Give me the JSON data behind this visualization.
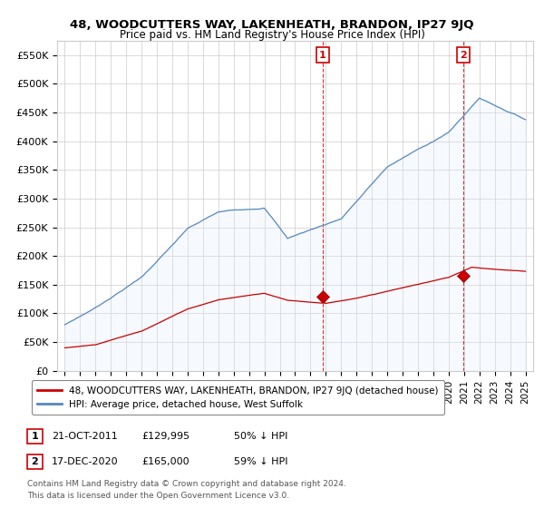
{
  "title": "48, WOODCUTTERS WAY, LAKENHEATH, BRANDON, IP27 9JQ",
  "subtitle": "Price paid vs. HM Land Registry's House Price Index (HPI)",
  "legend_red": "48, WOODCUTTERS WAY, LAKENHEATH, BRANDON, IP27 9JQ (detached house)",
  "legend_blue": "HPI: Average price, detached house, West Suffolk",
  "annotation1_label": "1",
  "annotation1_date": "21-OCT-2011",
  "annotation1_price": "£129,995",
  "annotation1_pct": "50% ↓ HPI",
  "annotation2_label": "2",
  "annotation2_date": "17-DEC-2020",
  "annotation2_price": "£165,000",
  "annotation2_pct": "59% ↓ HPI",
  "footnote1": "Contains HM Land Registry data © Crown copyright and database right 2024.",
  "footnote2": "This data is licensed under the Open Government Licence v3.0.",
  "ylim": [
    0,
    575000
  ],
  "yticks": [
    0,
    50000,
    100000,
    150000,
    200000,
    250000,
    300000,
    350000,
    400000,
    450000,
    500000,
    550000
  ],
  "ytick_labels": [
    "£0",
    "£50K",
    "£100K",
    "£150K",
    "£200K",
    "£250K",
    "£300K",
    "£350K",
    "£400K",
    "£450K",
    "£500K",
    "£550K"
  ],
  "red_color": "#cc0000",
  "blue_color": "#5588bb",
  "blue_fill_color": "#ddeeff",
  "grid_color": "#cccccc",
  "bg_color": "#ffffff",
  "sale1_year": 2011.8,
  "sale1_red_value": 129995,
  "sale2_year": 2020.95,
  "sale2_red_value": 165000
}
